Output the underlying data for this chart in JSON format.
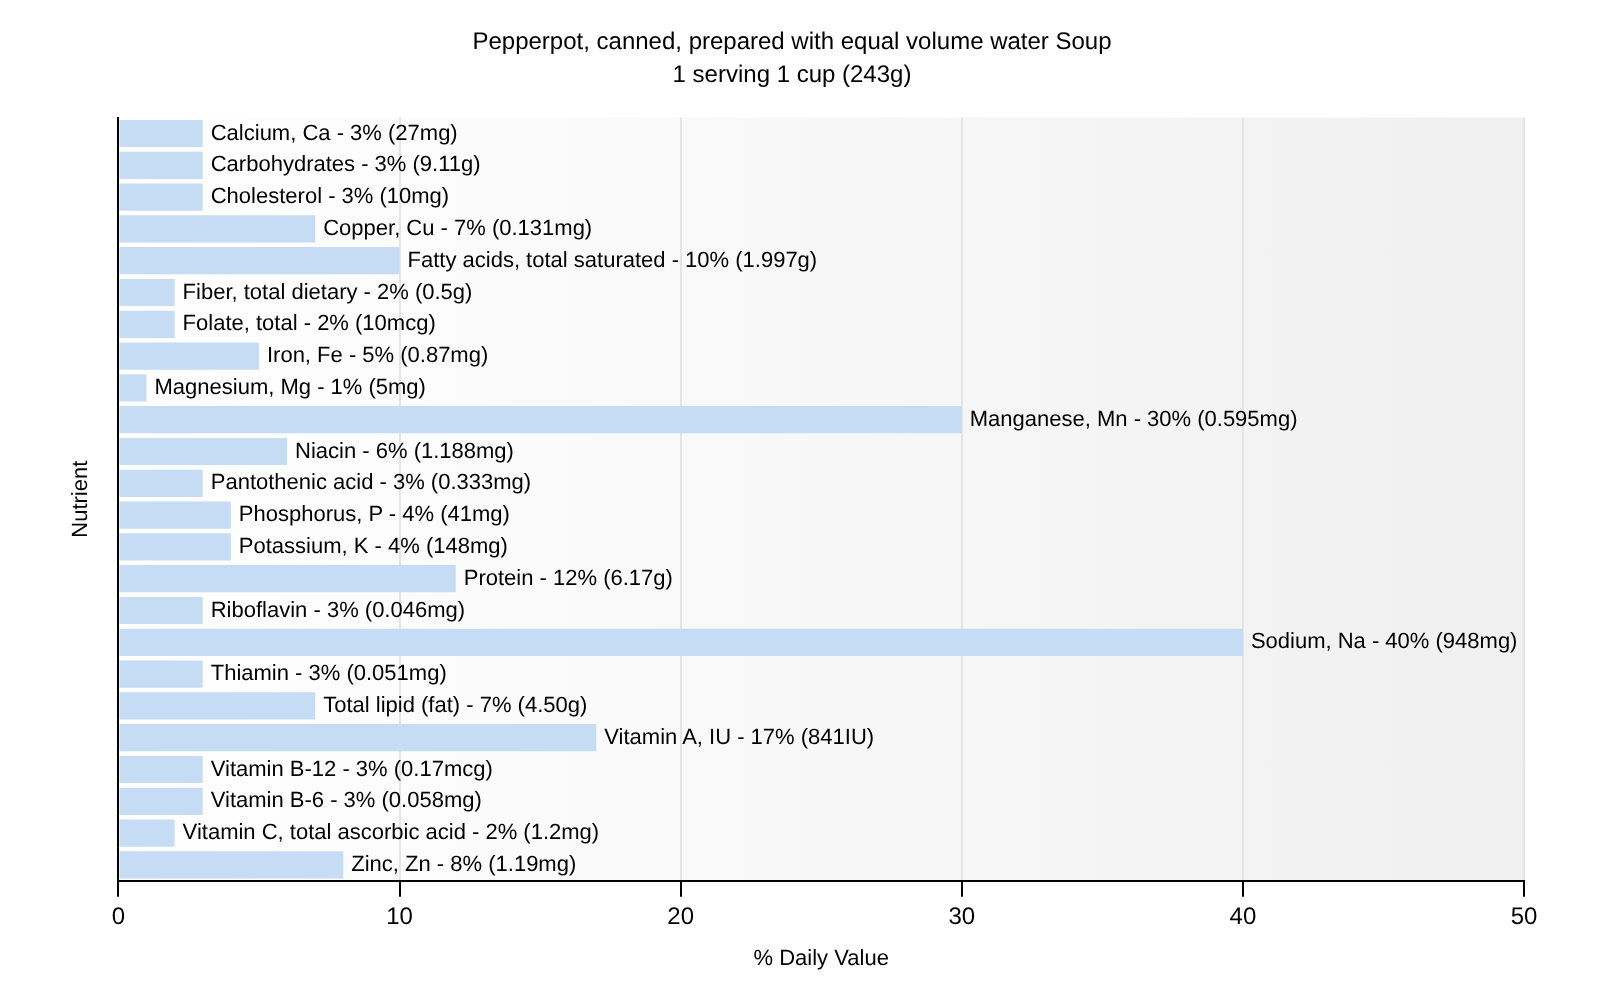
{
  "chart_data": {
    "type": "bar",
    "orientation": "horizontal",
    "title": "Pepperpot, canned, prepared with equal volume water Soup",
    "subtitle": "1 serving 1 cup (243g)",
    "xlabel": "% Daily Value",
    "ylabel": "Nutrient",
    "categories": [
      "Calcium, Ca - 3% (27mg)",
      "Carbohydrates - 3% (9.11g)",
      "Cholesterol - 3% (10mg)",
      "Copper, Cu - 7% (0.131mg)",
      "Fatty acids, total saturated - 10% (1.997g)",
      "Fiber, total dietary - 2% (0.5g)",
      "Folate, total - 2% (10mcg)",
      "Iron, Fe - 5% (0.87mg)",
      "Magnesium, Mg - 1% (5mg)",
      "Manganese, Mn - 30% (0.595mg)",
      "Niacin - 6% (1.188mg)",
      "Pantothenic acid - 3% (0.333mg)",
      "Phosphorus, P - 4% (41mg)",
      "Potassium, K - 4% (148mg)",
      "Protein - 12% (6.17g)",
      "Riboflavin - 3% (0.046mg)",
      "Sodium, Na - 40% (948mg)",
      "Thiamin - 3% (0.051mg)",
      "Total lipid (fat) - 7% (4.50g)",
      "Vitamin A, IU - 17% (841IU)",
      "Vitamin B-12 - 3% (0.17mcg)",
      "Vitamin B-6 - 3% (0.058mg)",
      "Vitamin C, total ascorbic acid - 2% (1.2mg)",
      "Zinc, Zn - 8% (1.19mg)"
    ],
    "values": [
      3,
      3,
      3,
      7,
      10,
      2,
      2,
      5,
      1,
      30,
      6,
      3,
      4,
      4,
      12,
      3,
      40,
      3,
      7,
      17,
      3,
      3,
      2,
      8
    ],
    "color": "#c6dcf5",
    "xlim": [
      0,
      50
    ],
    "xticks": [
      0,
      10,
      20,
      30,
      40,
      50
    ],
    "grid": "x",
    "tick_labels": "x"
  }
}
